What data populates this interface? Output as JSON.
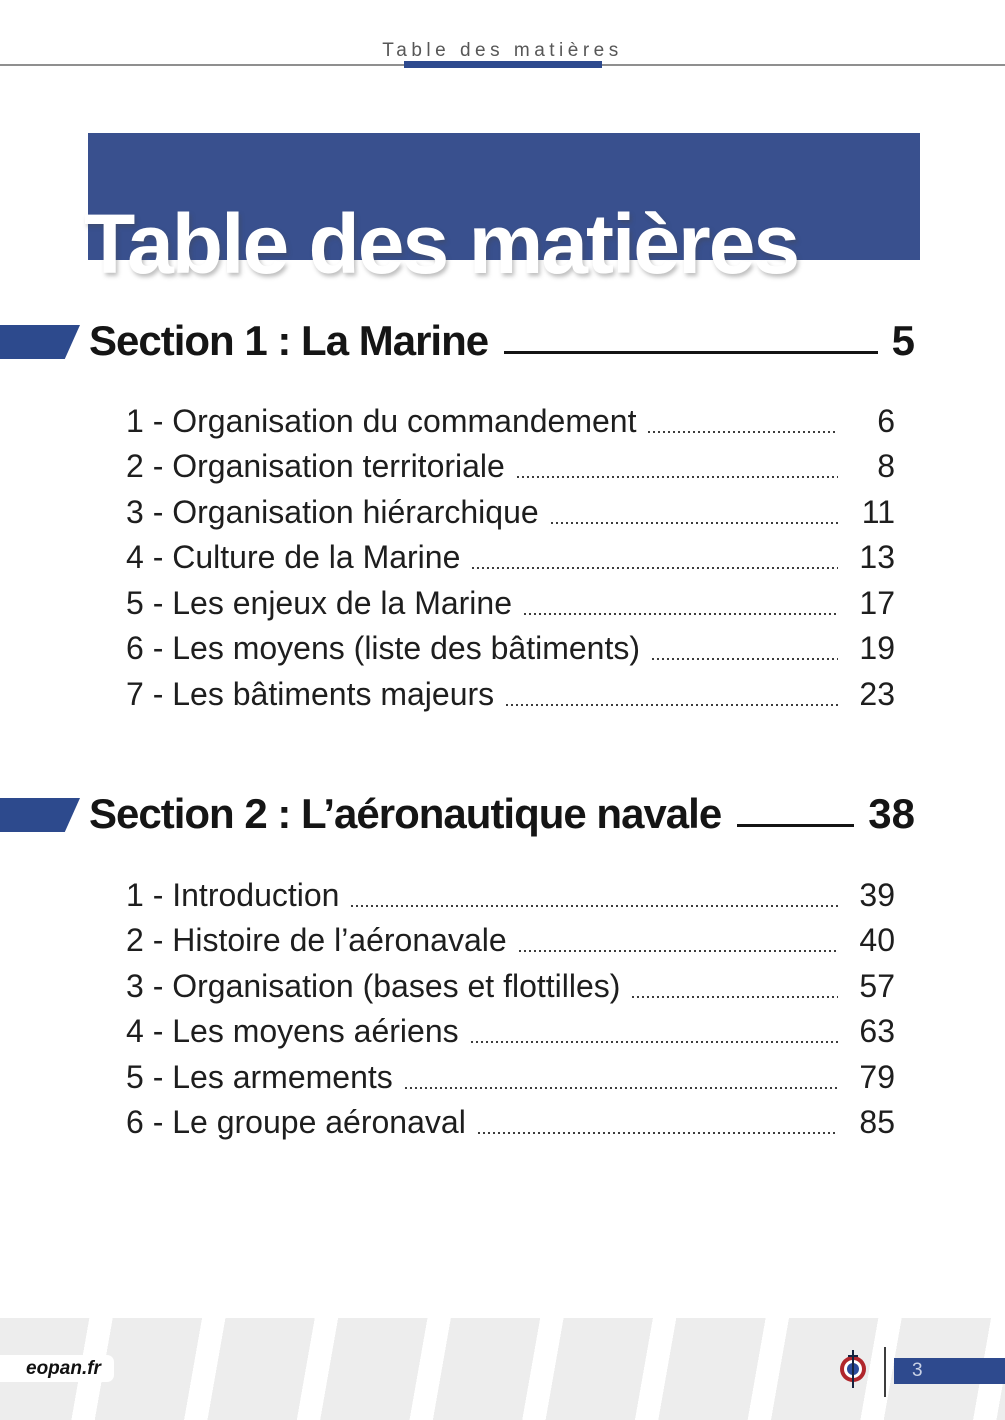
{
  "header": {
    "title": "Table des matières"
  },
  "banner": {
    "title": "Table des matières"
  },
  "sections": [
    {
      "label": "Section 1 : La Marine",
      "page": "5",
      "items": [
        {
          "label": "1 - Organisation du commandement",
          "page": "6"
        },
        {
          "label": "2 - Organisation territoriale",
          "page": "8"
        },
        {
          "label": "3 - Organisation hiérarchique",
          "page": "11"
        },
        {
          "label": "4 - Culture de la Marine",
          "page": "13"
        },
        {
          "label": "5 - Les enjeux de la Marine",
          "page": "17"
        },
        {
          "label": "6 - Les moyens (liste des bâtiments)",
          "page": "19"
        },
        {
          "label": "7 - Les bâtiments majeurs",
          "page": "23"
        }
      ]
    },
    {
      "label": "Section 2 : L’aéronautique navale",
      "page": "38",
      "items": [
        {
          "label": "1 - Introduction",
          "page": "39"
        },
        {
          "label": "2 - Histoire de l’aéronavale",
          "page": "40"
        },
        {
          "label": "3 - Organisation (bases et flottilles)",
          "page": "57"
        },
        {
          "label": "4 - Les moyens aériens",
          "page": "63"
        },
        {
          "label": "5 - Les armements",
          "page": "79"
        },
        {
          "label": "6 - Le groupe aéronaval",
          "page": "85"
        }
      ]
    }
  ],
  "footer": {
    "site": "eopan.fr",
    "page_number": "3",
    "logo": "french-naval-aviation-roundel"
  },
  "colors": {
    "banner_blue": "#39508e",
    "accent_blue": "#2e4a8e",
    "text_dark": "#1e1e1e",
    "stripe_gray": "#ededed",
    "roundel_red": "#b0262c",
    "roundel_blue": "#2b4a9b",
    "page_number_text": "#c9d2e6"
  }
}
